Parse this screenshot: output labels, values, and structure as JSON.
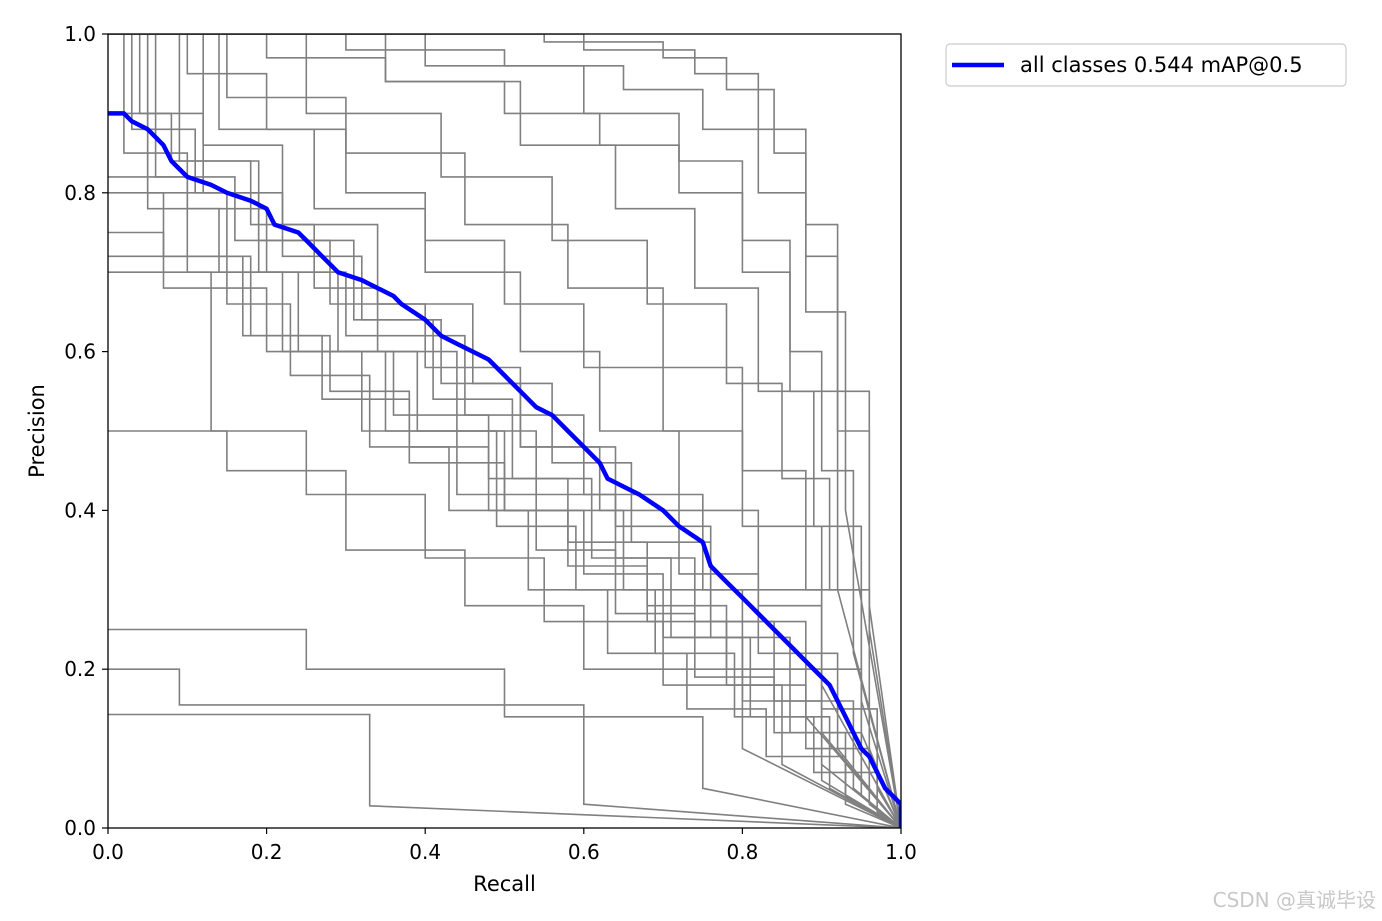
{
  "watermark": "CSDN @真诚毕设",
  "chart_data": {
    "type": "line",
    "title": "",
    "xlabel": "Recall",
    "ylabel": "Precision",
    "xlim": [
      0,
      1
    ],
    "ylim": [
      0,
      1
    ],
    "xticks": [
      "0.0",
      "0.2",
      "0.4",
      "0.6",
      "0.8",
      "1.0"
    ],
    "yticks": [
      "0.0",
      "0.2",
      "0.4",
      "0.6",
      "0.8",
      "1.0"
    ],
    "grid": false,
    "legend_position": "outside-top-right",
    "colors": {
      "class_curves": "#808080",
      "all_classes": "#0000ff"
    },
    "all_classes": {
      "name": "all classes 0.544 mAP@0.5",
      "x": [
        0.0,
        0.02,
        0.03,
        0.05,
        0.06,
        0.07,
        0.08,
        0.09,
        0.1,
        0.13,
        0.15,
        0.18,
        0.2,
        0.21,
        0.24,
        0.25,
        0.27,
        0.29,
        0.32,
        0.34,
        0.36,
        0.37,
        0.4,
        0.42,
        0.44,
        0.46,
        0.48,
        0.5,
        0.52,
        0.54,
        0.56,
        0.58,
        0.6,
        0.62,
        0.63,
        0.65,
        0.67,
        0.7,
        0.72,
        0.75,
        0.76,
        0.78,
        0.8,
        0.82,
        0.84,
        0.86,
        0.87,
        0.88,
        0.9,
        0.91,
        0.92,
        0.93,
        0.94,
        0.95,
        0.96,
        0.97,
        0.98,
        0.99,
        1.0,
        1.0
      ],
      "y": [
        0.9,
        0.9,
        0.89,
        0.88,
        0.87,
        0.86,
        0.84,
        0.83,
        0.82,
        0.81,
        0.8,
        0.79,
        0.78,
        0.76,
        0.75,
        0.74,
        0.72,
        0.7,
        0.69,
        0.68,
        0.67,
        0.66,
        0.64,
        0.62,
        0.61,
        0.6,
        0.59,
        0.57,
        0.55,
        0.53,
        0.52,
        0.5,
        0.48,
        0.46,
        0.44,
        0.43,
        0.42,
        0.4,
        0.38,
        0.36,
        0.33,
        0.31,
        0.29,
        0.27,
        0.25,
        0.23,
        0.22,
        0.21,
        0.19,
        0.18,
        0.16,
        0.14,
        0.12,
        0.1,
        0.09,
        0.07,
        0.05,
        0.04,
        0.03,
        0.0
      ]
    },
    "class_series": [
      {
        "x": [
          0.0,
          0.33,
          0.33,
          1.0
        ],
        "y": [
          0.143,
          0.143,
          0.028,
          0.0
        ]
      },
      {
        "x": [
          0.0,
          0.09,
          0.09,
          0.6,
          0.6,
          1.0
        ],
        "y": [
          0.2,
          0.2,
          0.155,
          0.155,
          0.03,
          0.0
        ]
      },
      {
        "x": [
          0.0,
          0.25,
          0.25,
          0.5,
          0.5,
          0.75,
          0.75,
          1.0
        ],
        "y": [
          0.25,
          0.25,
          0.2,
          0.2,
          0.14,
          0.14,
          0.05,
          0.0
        ]
      },
      {
        "x": [
          0.0,
          0.08,
          0.08,
          0.15,
          0.15,
          0.3,
          0.3,
          0.45,
          0.45,
          0.6,
          0.6,
          0.8,
          0.8,
          1.0
        ],
        "y": [
          0.5,
          0.5,
          0.5,
          0.5,
          0.45,
          0.45,
          0.35,
          0.35,
          0.28,
          0.28,
          0.2,
          0.2,
          0.1,
          0.0
        ]
      },
      {
        "x": [
          0.0,
          0.13,
          0.13,
          0.25,
          0.25,
          0.4,
          0.4,
          0.55,
          0.55,
          0.7,
          0.7,
          0.85,
          0.85,
          1.0
        ],
        "y": [
          0.7,
          0.7,
          0.5,
          0.5,
          0.42,
          0.42,
          0.34,
          0.34,
          0.26,
          0.26,
          0.18,
          0.18,
          0.08,
          0.0
        ]
      },
      {
        "x": [
          0.0,
          0.07,
          0.07,
          0.2,
          0.2,
          0.35,
          0.35,
          0.5,
          0.5,
          0.65,
          0.65,
          0.8,
          0.8,
          0.95,
          0.95,
          1.0
        ],
        "y": [
          0.75,
          0.75,
          0.68,
          0.68,
          0.6,
          0.6,
          0.5,
          0.5,
          0.4,
          0.4,
          0.3,
          0.3,
          0.2,
          0.2,
          0.06,
          0.0
        ]
      },
      {
        "x": [
          0.0,
          0.02,
          0.02,
          0.1,
          0.1,
          0.2,
          0.2,
          0.3,
          0.3,
          0.45,
          0.45,
          0.6,
          0.6,
          0.75,
          0.75,
          0.9,
          0.9,
          1.0
        ],
        "y": [
          1.0,
          1.0,
          0.85,
          0.85,
          0.78,
          0.78,
          0.7,
          0.7,
          0.62,
          0.62,
          0.52,
          0.52,
          0.42,
          0.42,
          0.3,
          0.3,
          0.12,
          0.0
        ]
      },
      {
        "x": [
          0.0,
          0.04,
          0.04,
          0.12,
          0.12,
          0.22,
          0.22,
          0.32,
          0.32,
          0.42,
          0.42,
          0.52,
          0.52,
          0.62,
          0.62,
          0.72,
          0.72,
          0.82,
          0.82,
          0.92,
          0.92,
          1.0
        ],
        "y": [
          1.0,
          1.0,
          0.9,
          0.9,
          0.8,
          0.8,
          0.72,
          0.72,
          0.64,
          0.64,
          0.56,
          0.56,
          0.48,
          0.48,
          0.4,
          0.4,
          0.32,
          0.32,
          0.22,
          0.22,
          0.1,
          0.0
        ]
      },
      {
        "x": [
          0.0,
          0.06,
          0.06,
          0.16,
          0.16,
          0.28,
          0.28,
          0.4,
          0.4,
          0.52,
          0.52,
          0.64,
          0.64,
          0.76,
          0.76,
          0.88,
          0.88,
          1.0
        ],
        "y": [
          1.0,
          1.0,
          0.82,
          0.82,
          0.74,
          0.74,
          0.66,
          0.66,
          0.58,
          0.58,
          0.48,
          0.48,
          0.38,
          0.38,
          0.26,
          0.26,
          0.14,
          0.0
        ]
      },
      {
        "x": [
          0.0,
          0.1,
          0.1,
          0.2,
          0.2,
          0.3,
          0.3,
          0.4,
          0.4,
          0.5,
          0.5,
          0.6,
          0.6,
          0.7,
          0.7,
          0.8,
          0.8,
          0.9,
          0.9,
          1.0
        ],
        "y": [
          1.0,
          1.0,
          0.95,
          0.95,
          0.88,
          0.88,
          0.8,
          0.8,
          0.74,
          0.74,
          0.66,
          0.66,
          0.58,
          0.58,
          0.5,
          0.5,
          0.38,
          0.38,
          0.18,
          0.0
        ]
      },
      {
        "x": [
          0.0,
          0.2,
          0.2,
          0.35,
          0.35,
          0.5,
          0.5,
          0.62,
          0.62,
          0.72,
          0.72,
          0.8,
          0.8,
          0.86,
          0.86,
          0.92,
          0.92,
          1.0
        ],
        "y": [
          1.0,
          1.0,
          0.97,
          0.97,
          0.94,
          0.94,
          0.9,
          0.9,
          0.86,
          0.86,
          0.8,
          0.8,
          0.7,
          0.7,
          0.55,
          0.55,
          0.3,
          0.0
        ]
      },
      {
        "x": [
          0.0,
          0.3,
          0.3,
          0.5,
          0.5,
          0.65,
          0.65,
          0.75,
          0.75,
          0.82,
          0.82,
          0.88,
          0.88,
          0.93,
          0.93,
          1.0
        ],
        "y": [
          1.0,
          1.0,
          0.98,
          0.98,
          0.96,
          0.96,
          0.93,
          0.93,
          0.88,
          0.88,
          0.8,
          0.8,
          0.65,
          0.65,
          0.4,
          0.0
        ]
      },
      {
        "x": [
          0.0,
          0.55,
          0.55,
          0.7,
          0.7,
          0.78,
          0.78,
          0.84,
          0.84,
          0.88,
          0.88,
          0.92,
          0.92,
          0.96,
          0.96,
          1.0
        ],
        "y": [
          1.0,
          1.0,
          0.99,
          0.99,
          0.97,
          0.97,
          0.93,
          0.93,
          0.85,
          0.85,
          0.72,
          0.72,
          0.5,
          0.5,
          0.25,
          0.0
        ]
      },
      {
        "x": [
          0.0,
          0.08,
          0.08,
          0.18,
          0.18,
          0.26,
          0.26,
          0.34,
          0.34,
          0.44,
          0.44,
          0.54,
          0.54,
          0.64,
          0.64,
          0.74,
          0.74,
          0.84,
          0.84,
          0.94,
          0.94,
          1.0
        ],
        "y": [
          0.9,
          0.9,
          0.84,
          0.84,
          0.76,
          0.76,
          0.68,
          0.68,
          0.6,
          0.6,
          0.5,
          0.5,
          0.42,
          0.42,
          0.34,
          0.34,
          0.26,
          0.26,
          0.16,
          0.16,
          0.05,
          0.0
        ]
      },
      {
        "x": [
          0.0,
          0.05,
          0.05,
          0.14,
          0.14,
          0.24,
          0.24,
          0.36,
          0.36,
          0.48,
          0.48,
          0.58,
          0.58,
          0.68,
          0.68,
          0.78,
          0.78,
          0.9,
          0.9,
          1.0
        ],
        "y": [
          1.0,
          1.0,
          0.78,
          0.78,
          0.7,
          0.7,
          0.6,
          0.6,
          0.52,
          0.52,
          0.44,
          0.44,
          0.36,
          0.36,
          0.28,
          0.28,
          0.2,
          0.2,
          0.08,
          0.0
        ]
      },
      {
        "x": [
          0.0,
          0.03,
          0.03,
          0.11,
          0.11,
          0.19,
          0.19,
          0.29,
          0.29,
          0.39,
          0.39,
          0.49,
          0.49,
          0.59,
          0.59,
          0.69,
          0.69,
          0.79,
          0.79,
          0.89,
          0.89,
          0.97,
          0.97,
          1.0
        ],
        "y": [
          1.0,
          1.0,
          0.88,
          0.88,
          0.8,
          0.8,
          0.7,
          0.7,
          0.6,
          0.6,
          0.5,
          0.5,
          0.38,
          0.38,
          0.3,
          0.3,
          0.22,
          0.22,
          0.14,
          0.14,
          0.07,
          0.07,
          0.02,
          0.0
        ]
      },
      {
        "x": [
          0.0,
          0.15,
          0.15,
          0.3,
          0.3,
          0.45,
          0.45,
          0.58,
          0.58,
          0.7,
          0.7,
          0.8,
          0.8,
          0.88,
          0.88,
          0.95,
          0.95,
          1.0
        ],
        "y": [
          1.0,
          1.0,
          0.92,
          0.92,
          0.85,
          0.85,
          0.76,
          0.76,
          0.68,
          0.68,
          0.58,
          0.58,
          0.45,
          0.45,
          0.3,
          0.3,
          0.12,
          0.0
        ]
      },
      {
        "x": [
          0.0,
          0.12,
          0.12,
          0.22,
          0.22,
          0.34,
          0.34,
          0.46,
          0.46,
          0.56,
          0.56,
          0.66,
          0.66,
          0.76,
          0.76,
          0.86,
          0.86,
          0.95,
          0.95,
          1.0
        ],
        "y": [
          1.0,
          1.0,
          0.86,
          0.86,
          0.76,
          0.76,
          0.66,
          0.66,
          0.56,
          0.56,
          0.46,
          0.46,
          0.36,
          0.36,
          0.24,
          0.24,
          0.12,
          0.12,
          0.04,
          0.0
        ]
      },
      {
        "x": [
          0.0,
          0.07,
          0.07,
          0.17,
          0.17,
          0.27,
          0.27,
          0.38,
          0.38,
          0.5,
          0.5,
          0.6,
          0.6,
          0.7,
          0.7,
          0.8,
          0.8,
          0.9,
          0.9,
          1.0
        ],
        "y": [
          0.8,
          0.8,
          0.72,
          0.72,
          0.62,
          0.62,
          0.54,
          0.54,
          0.46,
          0.46,
          0.4,
          0.4,
          0.32,
          0.32,
          0.24,
          0.24,
          0.16,
          0.16,
          0.06,
          0.0
        ]
      },
      {
        "x": [
          0.0,
          0.4,
          0.4,
          0.6,
          0.6,
          0.72,
          0.72,
          0.8,
          0.8,
          0.86,
          0.86,
          0.9,
          0.9,
          0.94,
          0.94,
          1.0
        ],
        "y": [
          1.0,
          1.0,
          0.96,
          0.96,
          0.9,
          0.9,
          0.84,
          0.84,
          0.74,
          0.74,
          0.6,
          0.6,
          0.45,
          0.45,
          0.22,
          0.0
        ]
      },
      {
        "x": [
          0.0,
          0.25,
          0.25,
          0.42,
          0.42,
          0.56,
          0.56,
          0.68,
          0.68,
          0.78,
          0.78,
          0.85,
          0.85,
          0.91,
          0.91,
          0.96,
          0.96,
          1.0
        ],
        "y": [
          1.0,
          1.0,
          0.9,
          0.9,
          0.82,
          0.82,
          0.74,
          0.74,
          0.66,
          0.66,
          0.56,
          0.56,
          0.44,
          0.44,
          0.3,
          0.3,
          0.1,
          0.0
        ]
      },
      {
        "x": [
          0.0,
          0.18,
          0.18,
          0.28,
          0.28,
          0.38,
          0.38,
          0.48,
          0.48,
          0.58,
          0.58,
          0.68,
          0.68,
          0.78,
          0.78,
          0.88,
          0.88,
          0.96,
          0.96,
          1.0
        ],
        "y": [
          0.72,
          0.72,
          0.62,
          0.62,
          0.55,
          0.55,
          0.48,
          0.48,
          0.4,
          0.4,
          0.33,
          0.33,
          0.26,
          0.26,
          0.18,
          0.18,
          0.1,
          0.1,
          0.03,
          0.0
        ]
      },
      {
        "x": [
          0.0,
          0.05,
          0.05,
          0.15,
          0.15,
          0.23,
          0.23,
          0.33,
          0.33,
          0.43,
          0.43,
          0.53,
          0.53,
          0.63,
          0.63,
          0.73,
          0.73,
          0.83,
          0.83,
          0.93,
          0.93,
          1.0
        ],
        "y": [
          1.0,
          1.0,
          0.8,
          0.8,
          0.66,
          0.66,
          0.57,
          0.57,
          0.48,
          0.48,
          0.4,
          0.4,
          0.3,
          0.3,
          0.22,
          0.22,
          0.15,
          0.15,
          0.09,
          0.09,
          0.03,
          0.0
        ]
      },
      {
        "x": [
          0.0,
          0.6,
          0.6,
          0.74,
          0.74,
          0.82,
          0.82,
          0.88,
          0.88,
          0.92,
          0.92,
          0.96,
          0.96,
          1.0
        ],
        "y": [
          1.0,
          1.0,
          0.98,
          0.98,
          0.95,
          0.95,
          0.88,
          0.88,
          0.76,
          0.76,
          0.55,
          0.55,
          0.28,
          0.0
        ]
      },
      {
        "x": [
          0.0,
          0.09,
          0.09,
          0.19,
          0.19,
          0.31,
          0.31,
          0.41,
          0.41,
          0.51,
          0.51,
          0.61,
          0.61,
          0.71,
          0.71,
          0.81,
          0.81,
          0.91,
          0.91,
          1.0
        ],
        "y": [
          1.0,
          1.0,
          0.84,
          0.84,
          0.74,
          0.74,
          0.64,
          0.64,
          0.54,
          0.54,
          0.44,
          0.44,
          0.34,
          0.34,
          0.24,
          0.24,
          0.14,
          0.14,
          0.05,
          0.0
        ]
      },
      {
        "x": [
          0.0,
          0.35,
          0.35,
          0.52,
          0.52,
          0.64,
          0.64,
          0.74,
          0.74,
          0.82,
          0.82,
          0.89,
          0.89,
          0.95,
          0.95,
          1.0
        ],
        "y": [
          1.0,
          1.0,
          0.94,
          0.94,
          0.86,
          0.86,
          0.78,
          0.78,
          0.68,
          0.68,
          0.55,
          0.55,
          0.38,
          0.38,
          0.16,
          0.0
        ]
      },
      {
        "x": [
          0.0,
          0.1,
          0.1,
          0.22,
          0.22,
          0.32,
          0.32,
          0.44,
          0.44,
          0.54,
          0.54,
          0.64,
          0.64,
          0.74,
          0.74,
          0.84,
          0.84,
          0.93,
          0.93,
          1.0
        ],
        "y": [
          0.82,
          0.82,
          0.7,
          0.7,
          0.6,
          0.6,
          0.5,
          0.5,
          0.42,
          0.42,
          0.35,
          0.35,
          0.27,
          0.27,
          0.19,
          0.19,
          0.12,
          0.12,
          0.04,
          0.0
        ]
      },
      {
        "x": [
          0.0,
          0.14,
          0.14,
          0.26,
          0.26,
          0.4,
          0.4,
          0.52,
          0.52,
          0.62,
          0.62,
          0.72,
          0.72,
          0.82,
          0.82,
          0.9,
          0.9,
          0.97,
          0.97,
          1.0
        ],
        "y": [
          1.0,
          1.0,
          0.88,
          0.88,
          0.78,
          0.78,
          0.7,
          0.7,
          0.6,
          0.6,
          0.5,
          0.5,
          0.4,
          0.4,
          0.28,
          0.28,
          0.15,
          0.15,
          0.05,
          0.0
        ]
      }
    ]
  }
}
